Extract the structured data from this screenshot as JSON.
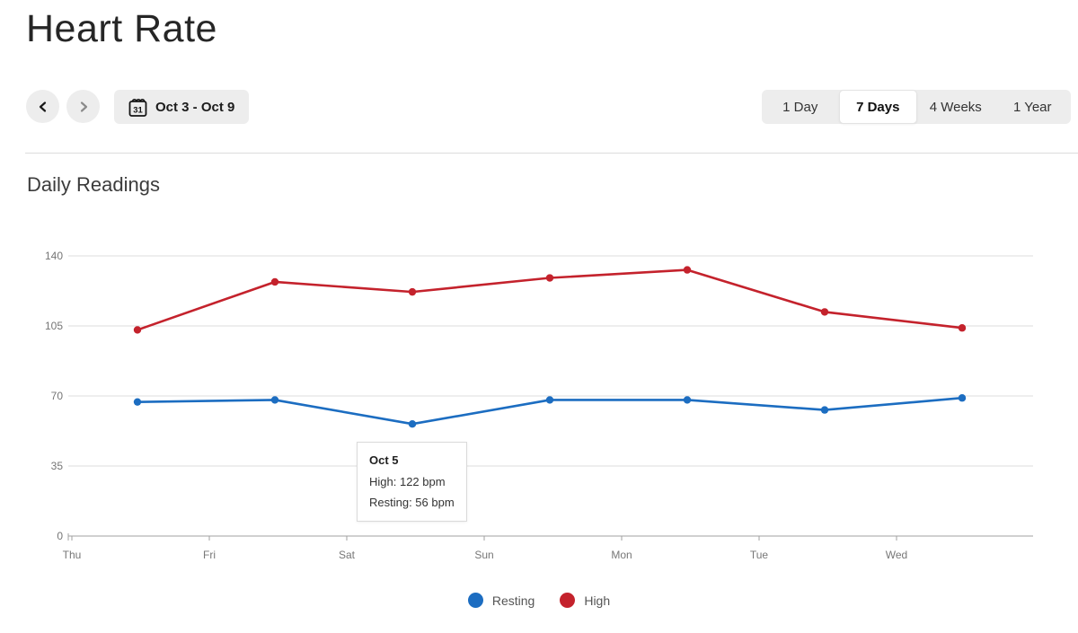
{
  "header": {
    "title": "Heart Rate"
  },
  "controls": {
    "date_range": "Oct 3 - Oct 9",
    "calendar_icon_day": "31",
    "tabs": [
      {
        "label": "1 Day",
        "active": false
      },
      {
        "label": "7 Days",
        "active": true
      },
      {
        "label": "4 Weeks",
        "active": false
      },
      {
        "label": "1 Year",
        "active": false
      }
    ]
  },
  "section": {
    "title": "Daily Readings"
  },
  "chart_data": {
    "type": "line",
    "title": "Daily Readings",
    "x": [
      "Thu",
      "Fri",
      "Sat",
      "Sun",
      "Mon",
      "Tue",
      "Wed"
    ],
    "series": [
      {
        "name": "Resting",
        "color": "#1c6dc1",
        "values": [
          67,
          68,
          56,
          68,
          68,
          63,
          69
        ]
      },
      {
        "name": "High",
        "color": "#c4222c",
        "values": [
          103,
          127,
          122,
          129,
          133,
          112,
          104
        ]
      }
    ],
    "unit": "bpm",
    "ylim": [
      0,
      140
    ],
    "yticks": [
      0,
      35,
      70,
      105,
      140
    ],
    "grid": true,
    "legend_position": "bottom"
  },
  "tooltip": {
    "title": "Oct 5",
    "lines": [
      "High: 122 bpm",
      "Resting: 56 bpm"
    ]
  },
  "colors": {
    "grid": "#dddddd",
    "axis": "#a0a0a0",
    "axis_text": "#757575",
    "control_bg": "#ededed"
  }
}
